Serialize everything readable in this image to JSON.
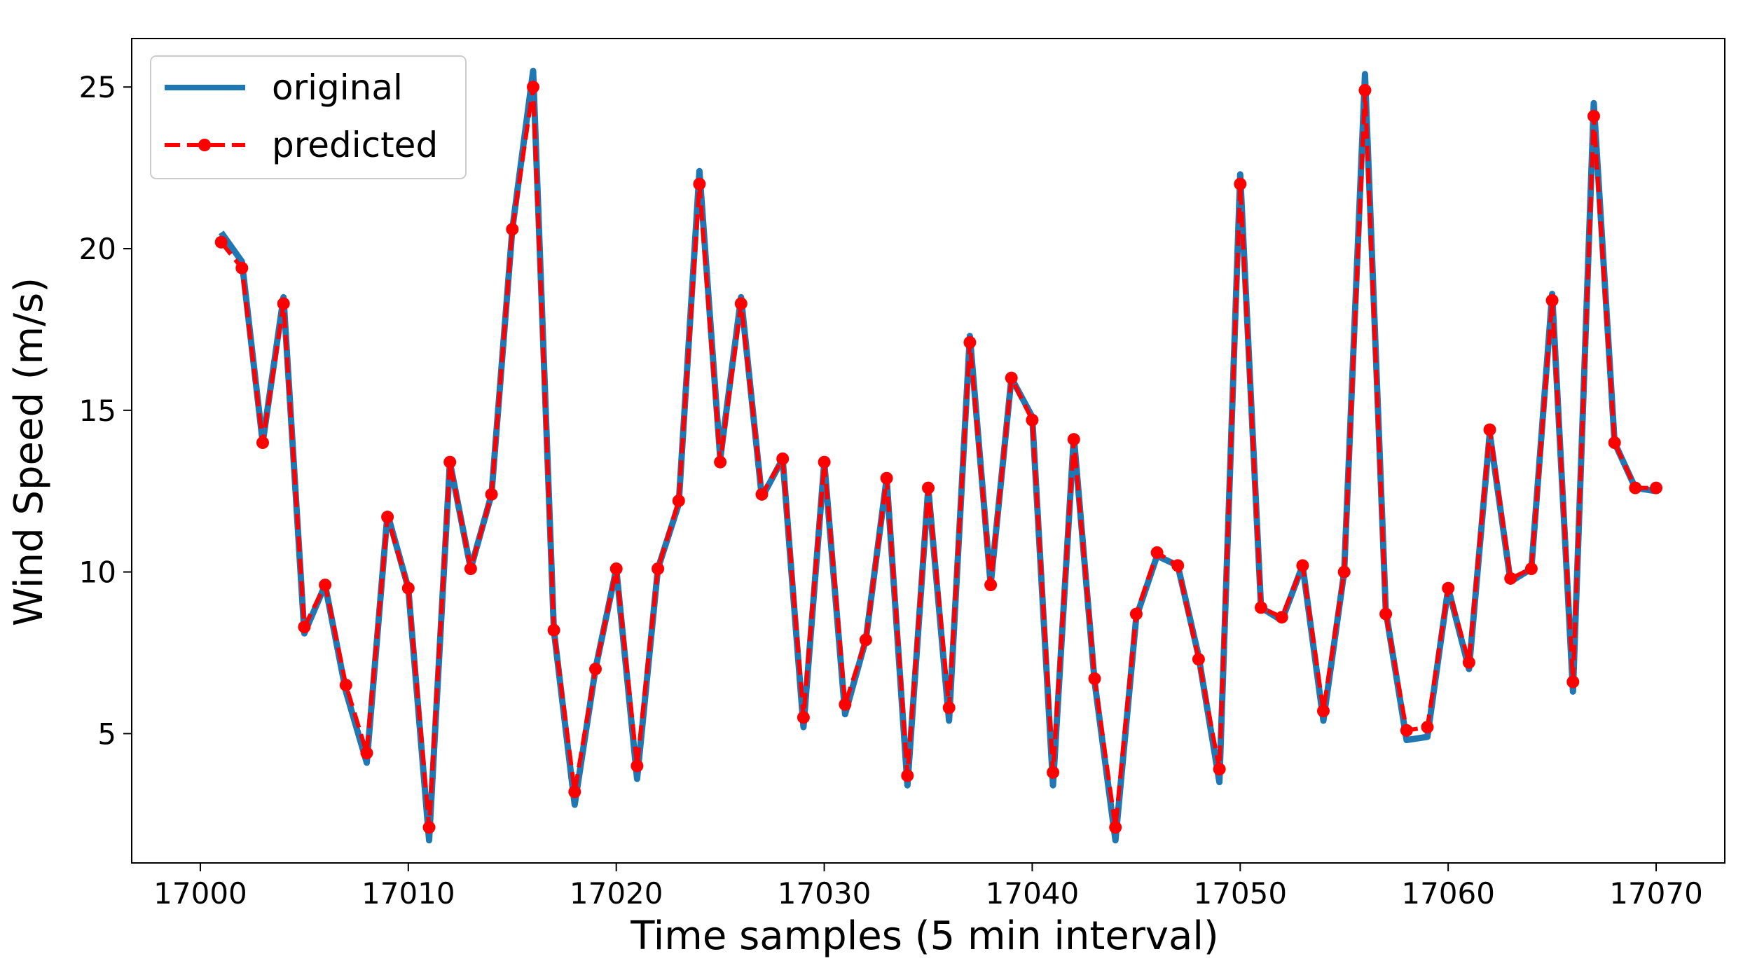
{
  "chart_data": {
    "type": "line",
    "title": "",
    "xlabel": "Time samples (5 min interval)",
    "ylabel": "Wind Speed (m/s)",
    "xlim": [
      16996.7,
      17073.3
    ],
    "ylim": [
      1.0,
      26.5
    ],
    "xticks": [
      17000,
      17010,
      17020,
      17030,
      17040,
      17050,
      17060,
      17070
    ],
    "yticks": [
      5,
      10,
      15,
      20,
      25
    ],
    "grid": false,
    "legend": {
      "placement": "top-left"
    },
    "x": [
      17001,
      17002,
      17003,
      17004,
      17005,
      17006,
      17007,
      17008,
      17009,
      17010,
      17011,
      17012,
      17013,
      17014,
      17015,
      17016,
      17017,
      17018,
      17019,
      17020,
      17021,
      17022,
      17023,
      17024,
      17025,
      17026,
      17027,
      17028,
      17029,
      17030,
      17031,
      17032,
      17033,
      17034,
      17035,
      17036,
      17037,
      17038,
      17039,
      17040,
      17041,
      17042,
      17043,
      17044,
      17045,
      17046,
      17047,
      17048,
      17049,
      17050,
      17051,
      17052,
      17053,
      17054,
      17055,
      17056,
      17057,
      17058,
      17059,
      17060,
      17061,
      17062,
      17063,
      17064,
      17065,
      17066,
      17067,
      17068,
      17069,
      17070
    ],
    "series": [
      {
        "name": "original",
        "color": "#1f77b4",
        "style": "solid",
        "values": [
          20.5,
          19.6,
          14.0,
          18.5,
          8.1,
          9.6,
          6.3,
          4.1,
          11.8,
          9.5,
          1.7,
          13.4,
          10.1,
          12.4,
          20.6,
          25.5,
          8.2,
          2.8,
          7.0,
          10.1,
          3.6,
          10.1,
          12.1,
          22.4,
          13.5,
          18.5,
          12.3,
          13.5,
          5.2,
          13.4,
          5.6,
          7.9,
          12.9,
          3.4,
          12.6,
          5.4,
          17.3,
          9.6,
          16.0,
          14.8,
          3.4,
          14.2,
          6.6,
          1.7,
          8.6,
          10.5,
          10.2,
          7.4,
          3.5,
          22.3,
          8.9,
          8.5,
          10.2,
          5.4,
          10.0,
          25.4,
          8.8,
          4.8,
          4.9,
          9.5,
          7.0,
          14.3,
          9.7,
          10.1,
          18.6,
          6.3,
          24.5,
          14.0,
          12.6,
          12.5
        ]
      },
      {
        "name": "predicted",
        "color": "#ff0000",
        "style": "dashed",
        "marker": "circle",
        "values": [
          20.2,
          19.4,
          14.0,
          18.3,
          8.3,
          9.6,
          6.5,
          4.4,
          11.7,
          9.5,
          2.1,
          13.4,
          10.1,
          12.4,
          20.6,
          25.0,
          8.2,
          3.2,
          7.0,
          10.1,
          4.0,
          10.1,
          12.2,
          22.0,
          13.4,
          18.3,
          12.4,
          13.5,
          5.5,
          13.4,
          5.9,
          7.9,
          12.9,
          3.7,
          12.6,
          5.8,
          17.1,
          9.6,
          16.0,
          14.7,
          3.8,
          14.1,
          6.7,
          2.1,
          8.7,
          10.6,
          10.2,
          7.3,
          3.9,
          22.0,
          8.9,
          8.6,
          10.2,
          5.7,
          10.0,
          24.9,
          8.7,
          5.1,
          5.2,
          9.5,
          7.2,
          14.4,
          9.8,
          10.1,
          18.4,
          6.6,
          24.1,
          14.0,
          12.6,
          12.6
        ]
      }
    ]
  }
}
